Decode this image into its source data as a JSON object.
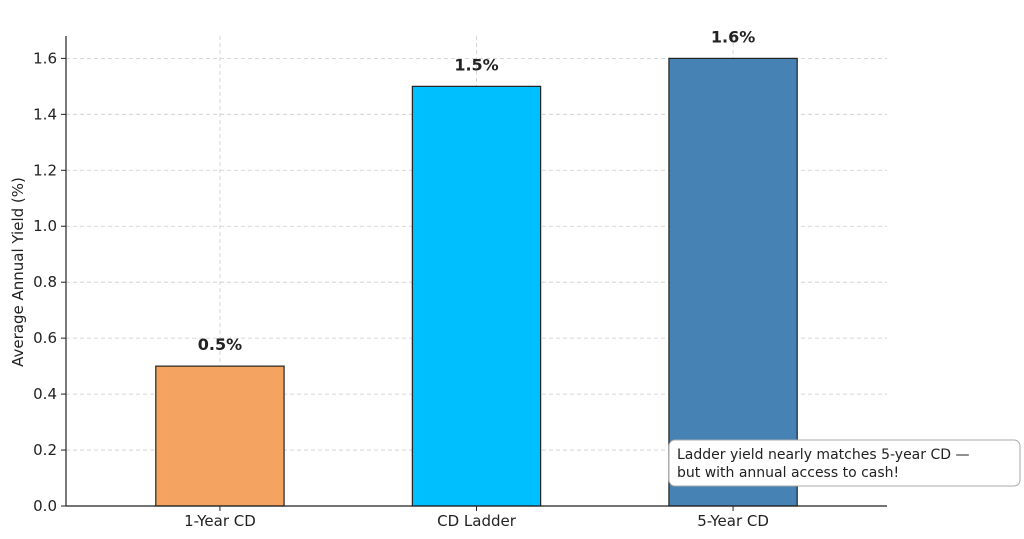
{
  "chart_data": {
    "type": "bar",
    "title": "",
    "xlabel": "",
    "ylabel": "Average Annual Yield (%)",
    "categories": [
      "1-Year CD",
      "CD Ladder",
      "5-Year CD"
    ],
    "values": [
      0.5,
      1.5,
      1.6
    ],
    "value_labels": [
      "0.5%",
      "1.5%",
      "1.6%"
    ],
    "colors": [
      "#f4a460",
      "#00bfff",
      "#4682b4"
    ],
    "ylim": [
      0,
      1.68
    ],
    "yticks": [
      0.0,
      0.2,
      0.4,
      0.6,
      0.8,
      1.0,
      1.2,
      1.4,
      1.6
    ],
    "ytick_labels": [
      "0.0",
      "0.2",
      "0.4",
      "0.6",
      "0.8",
      "1.0",
      "1.2",
      "1.4",
      "1.6"
    ],
    "grid": true,
    "annotation": {
      "lines": [
        "Ladder yield nearly matches 5-year CD —",
        "but with annual access to cash!"
      ]
    }
  }
}
